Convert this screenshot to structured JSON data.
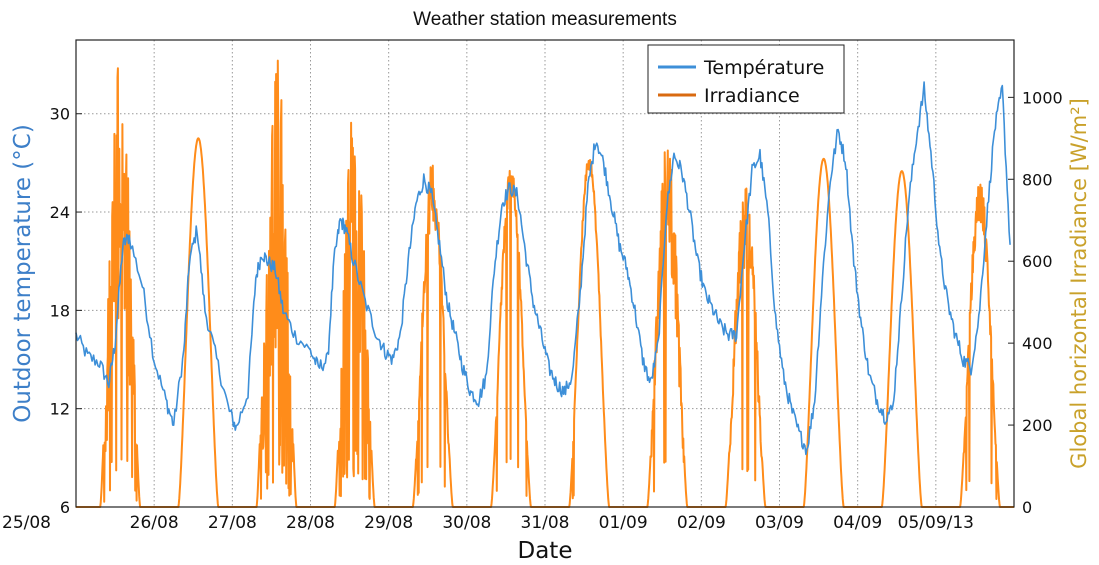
{
  "chart_data": {
    "type": "line",
    "title": "Weather station measurements",
    "xlabel": "Date",
    "ylabel_left": "Outdoor temperature (°C)",
    "ylabel_right": "Global horizontal Irradiance [W/m²]",
    "x_ticks": [
      "25/08",
      "26/08",
      "27/08",
      "28/08",
      "29/08",
      "30/08",
      "31/08",
      "01/09",
      "02/09",
      "03/09",
      "04/09",
      "05/09/13"
    ],
    "ylim_left": [
      6,
      34.5
    ],
    "yticks_left": [
      6,
      12,
      18,
      24,
      30
    ],
    "ylim_right": [
      0,
      1140
    ],
    "yticks_right": [
      0,
      200,
      400,
      600,
      800,
      1000
    ],
    "grid": true,
    "legend_position": "top-right",
    "colors": {
      "temperature": "#3d8fd8",
      "irradiance": "#ff8c1a",
      "left_axis_label": "#3d7fc8",
      "right_axis_label": "#c9a12a"
    },
    "series": [
      {
        "name": "Température",
        "axis": "left",
        "x_days": [
          0.0,
          0.15,
          0.3,
          0.42,
          0.5,
          0.6,
          0.68,
          0.85,
          1.0,
          1.15,
          1.25,
          1.38,
          1.45,
          1.55,
          1.65,
          1.8,
          1.95,
          2.05,
          2.2,
          2.3,
          2.38,
          2.45,
          2.55,
          2.65,
          2.8,
          3.0,
          3.1,
          3.22,
          3.3,
          3.38,
          3.45,
          3.55,
          3.7,
          3.85,
          3.95,
          4.05,
          4.15,
          4.25,
          4.35,
          4.45,
          4.55,
          4.65,
          4.75,
          4.85,
          4.95,
          5.05,
          5.15,
          5.25,
          5.35,
          5.45,
          5.55,
          5.65,
          5.75,
          5.85,
          5.95,
          6.05,
          6.15,
          6.25,
          6.35,
          6.45,
          6.55,
          6.65,
          6.75,
          6.85,
          6.95,
          7.05,
          7.15,
          7.25,
          7.35,
          7.45,
          7.55,
          7.65,
          7.75,
          7.85,
          7.95,
          8.05,
          8.15,
          8.25,
          8.35,
          8.45,
          8.55,
          8.65,
          8.75,
          8.85,
          8.95,
          9.05,
          9.15,
          9.25,
          9.35,
          9.45,
          9.55,
          9.65,
          9.75,
          9.85,
          9.95,
          10.05,
          10.15,
          10.25,
          10.35,
          10.45,
          10.55,
          10.65,
          10.75,
          10.85,
          10.95,
          11.05,
          11.15,
          11.25,
          11.35,
          11.45,
          11.55,
          11.65,
          11.75,
          11.85,
          11.95
        ],
        "values": [
          16.5,
          15.2,
          14.8,
          13.5,
          16.0,
          22.0,
          22.5,
          19.5,
          15.0,
          12.5,
          11.0,
          15.5,
          21.0,
          23.0,
          18.0,
          15.0,
          12.0,
          10.8,
          13.0,
          20.0,
          21.5,
          21.0,
          20.5,
          18.0,
          16.5,
          15.5,
          14.5,
          15.0,
          21.0,
          23.5,
          23.0,
          21.0,
          18.5,
          16.5,
          15.5,
          15.0,
          16.5,
          21.0,
          24.5,
          26.0,
          25.0,
          22.0,
          18.5,
          16.5,
          14.5,
          13.0,
          12.5,
          14.0,
          20.5,
          24.5,
          25.5,
          25.0,
          21.5,
          18.5,
          16.5,
          14.5,
          13.5,
          13.0,
          14.0,
          19.0,
          25.5,
          28.5,
          27.0,
          24.5,
          22.0,
          20.5,
          18.0,
          15.0,
          13.5,
          16.0,
          24.0,
          27.5,
          26.5,
          24.0,
          21.0,
          19.0,
          18.0,
          17.0,
          16.5,
          16.5,
          22.0,
          26.5,
          27.5,
          24.0,
          17.5,
          14.0,
          12.0,
          10.5,
          9.5,
          12.5,
          20.0,
          26.0,
          29.0,
          27.0,
          21.0,
          17.0,
          14.0,
          12.5,
          11.5,
          12.0,
          18.0,
          24.5,
          28.5,
          31.5,
          27.0,
          21.5,
          18.5,
          16.5,
          15.0,
          14.5,
          17.5,
          23.5,
          29.0,
          31.5,
          22.0
        ]
      },
      {
        "name": "Irradiance",
        "axis": "right",
        "day_peaks": [
          1100,
          900,
          1120,
          1000,
          850,
          840,
          860,
          900,
          800,
          850,
          820,
          800
        ],
        "day_noise": [
          0.7,
          0.0,
          0.75,
          0.65,
          0.2,
          0.1,
          0.05,
          0.35,
          0.3,
          0.0,
          0.0,
          0.15
        ],
        "sunrise_offset": 0.31,
        "sunset_offset": 0.82
      }
    ]
  }
}
